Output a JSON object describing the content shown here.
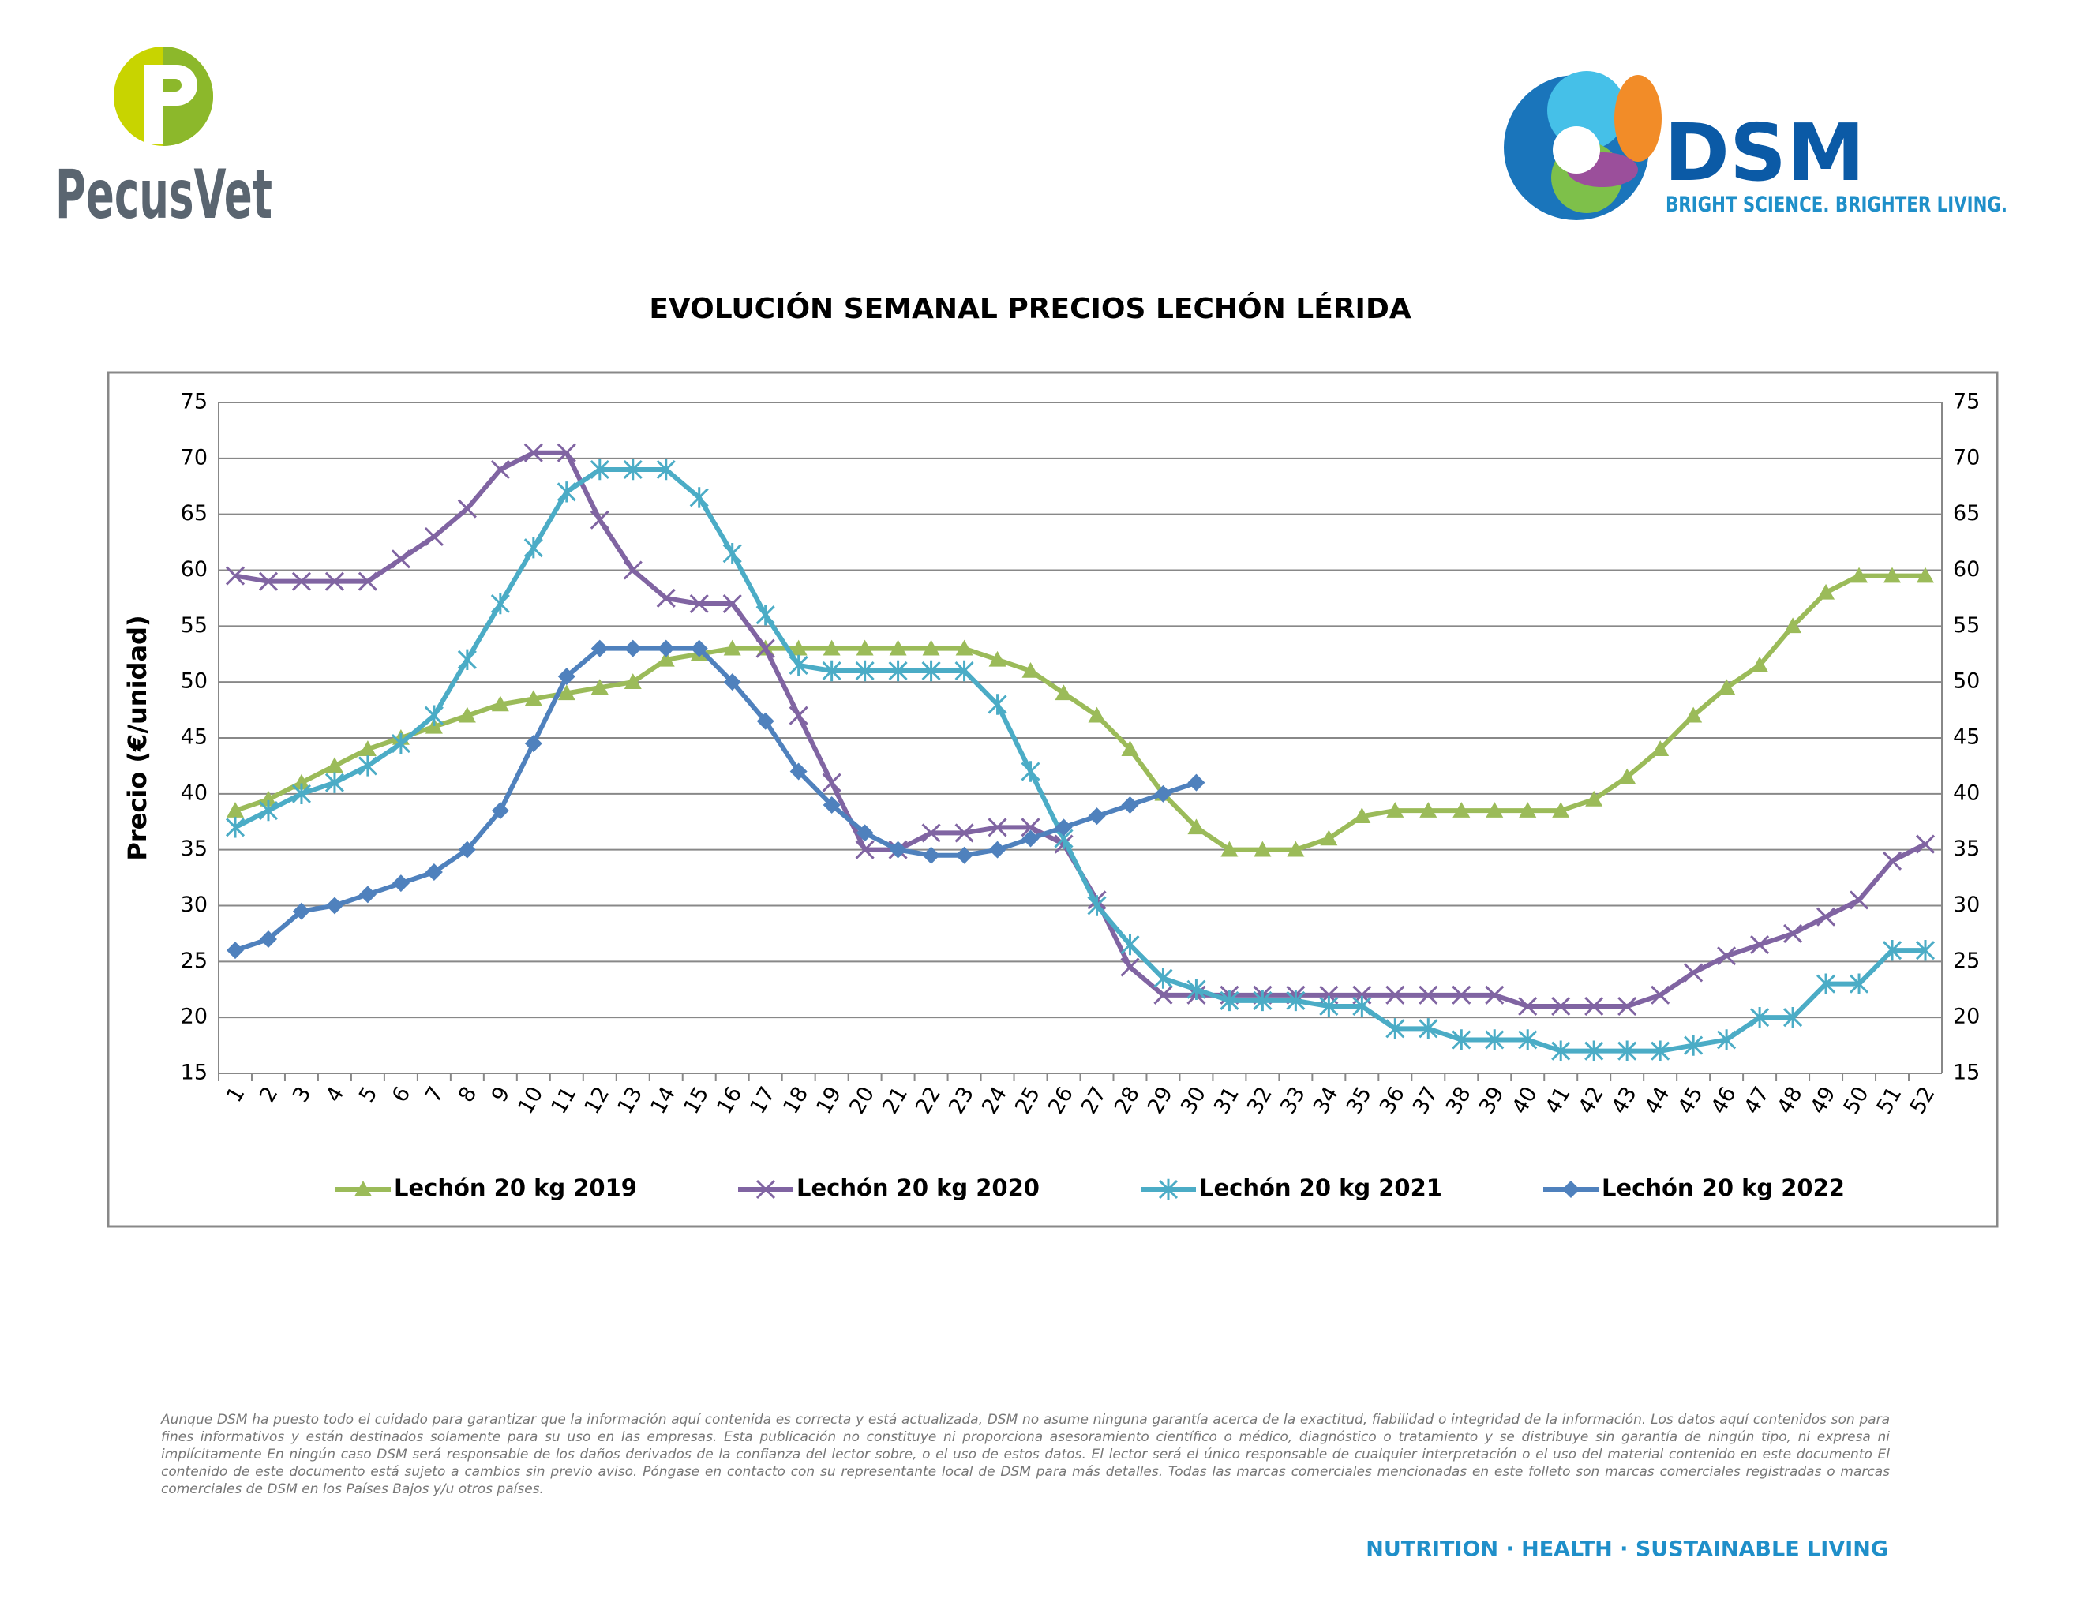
{
  "header": {
    "left_logo": "PecusVet",
    "right_logo": "DSM",
    "right_tagline": "BRIGHT SCIENCE. BRIGHTER LIVING."
  },
  "chart_data": {
    "type": "line",
    "title": "EVOLUCIÓN SEMANAL PRECIOS LECHÓN LÉRIDA",
    "y_label": "Precio (€/unidad)",
    "categories": [
      "1",
      "2",
      "3",
      "4",
      "5",
      "6",
      "7",
      "8",
      "9",
      "10",
      "11",
      "12",
      "13",
      "14",
      "15",
      "16",
      "17",
      "18",
      "19",
      "20",
      "21",
      "22",
      "23",
      "24",
      "25",
      "26",
      "27",
      "28",
      "29",
      "30",
      "31",
      "32",
      "33",
      "34",
      "35",
      "36",
      "37",
      "38",
      "39",
      "40",
      "41",
      "42",
      "43",
      "44",
      "45",
      "46",
      "47",
      "48",
      "49",
      "50",
      "51",
      "52"
    ],
    "ylim": [
      15,
      75
    ],
    "yticks": [
      15,
      20,
      25,
      30,
      35,
      40,
      45,
      50,
      55,
      60,
      65,
      70,
      75
    ],
    "grid": true,
    "legend": "bottom",
    "series": [
      {
        "name": "Lechón 20 kg 2019",
        "color": "#9bbb59",
        "marker": "triangle",
        "values": [
          38.5,
          39.5,
          41,
          42.5,
          44,
          45,
          46,
          47,
          48,
          48.5,
          49,
          49.5,
          50,
          52,
          52.5,
          53,
          53,
          53,
          53,
          53,
          53,
          53,
          53,
          52,
          51,
          49,
          47,
          44,
          40,
          37,
          35,
          35,
          35,
          36,
          38,
          38.5,
          38.5,
          38.5,
          38.5,
          38.5,
          38.5,
          39.5,
          41.5,
          44,
          47,
          49.5,
          51.5,
          55,
          58,
          59.5,
          59.5,
          59.5
        ]
      },
      {
        "name": "Lechón 20 kg 2020",
        "color": "#8064a2",
        "marker": "x",
        "values": [
          59.5,
          59,
          59,
          59,
          59,
          61,
          63,
          65.5,
          69,
          70.5,
          70.5,
          64.5,
          60,
          57.5,
          57,
          57,
          53,
          47,
          41,
          35,
          35,
          36.5,
          36.5,
          37,
          37,
          35.5,
          30.5,
          24.5,
          22,
          22,
          22,
          22,
          22,
          22,
          22,
          22,
          22,
          22,
          22,
          21,
          21,
          21,
          21,
          22,
          24,
          25.5,
          26.5,
          27.5,
          29,
          30.5,
          34,
          35.5
        ]
      },
      {
        "name": "Lechón 20 kg 2021",
        "color": "#4bacc6",
        "marker": "asterisk",
        "values": [
          37,
          38.5,
          40,
          41,
          42.5,
          44.5,
          47,
          52,
          57,
          62,
          67,
          69,
          69,
          69,
          66.5,
          61.5,
          56,
          51.5,
          51,
          51,
          51,
          51,
          51,
          48,
          42,
          36,
          30,
          26.5,
          23.5,
          22.5,
          21.5,
          21.5,
          21.5,
          21,
          21,
          19,
          19,
          18,
          18,
          18,
          17,
          17,
          17,
          17,
          17.5,
          18,
          20,
          20,
          23,
          23,
          26,
          26
        ]
      },
      {
        "name": "Lechón 20 kg 2022",
        "color": "#4f81bd",
        "marker": "diamond",
        "values": [
          26,
          27,
          29.5,
          30,
          31,
          32,
          33,
          35,
          38.5,
          44.5,
          50.5,
          53,
          53,
          53,
          53,
          50,
          46.5,
          42,
          39,
          36.5,
          35,
          34.5,
          34.5,
          35,
          36,
          37,
          38,
          39,
          40,
          41,
          null,
          null,
          null,
          null,
          null,
          null,
          null,
          null,
          null,
          null,
          null,
          null,
          null,
          null,
          null,
          null,
          null,
          null,
          null,
          null,
          null,
          null
        ]
      }
    ]
  },
  "footer": {
    "disclaimer": "Aunque DSM ha puesto todo el cuidado para garantizar que la información aquí contenida es correcta y está actualizada, DSM no asume ninguna garantía acerca de la exactitud, fiabilidad o integridad de la información. Los datos aquí contenidos son para fines informativos y están destinados solamente para su uso en las empresas. Esta publicación no constituye ni proporciona asesoramiento científico o médico, diagnóstico o tratamiento y se distribuye sin garantía de ningún tipo, ni expresa ni implícitamente En ningún caso DSM será responsable de los daños derivados de la confianza del lector sobre, o el uso de estos datos. El lector será el único responsable de cualquier interpretación o el uso del material contenido en este documento El contenido de este documento está sujeto a cambios sin previo aviso. Póngase en contacto con su representante local de DSM para más detalles. Todas las marcas comerciales mencionadas en este folleto son marcas comerciales registradas o marcas comerciales de DSM en los Países Bajos y/u otros países.",
    "slogan": "NUTRITION · HEALTH · SUSTAINABLE LIVING"
  }
}
